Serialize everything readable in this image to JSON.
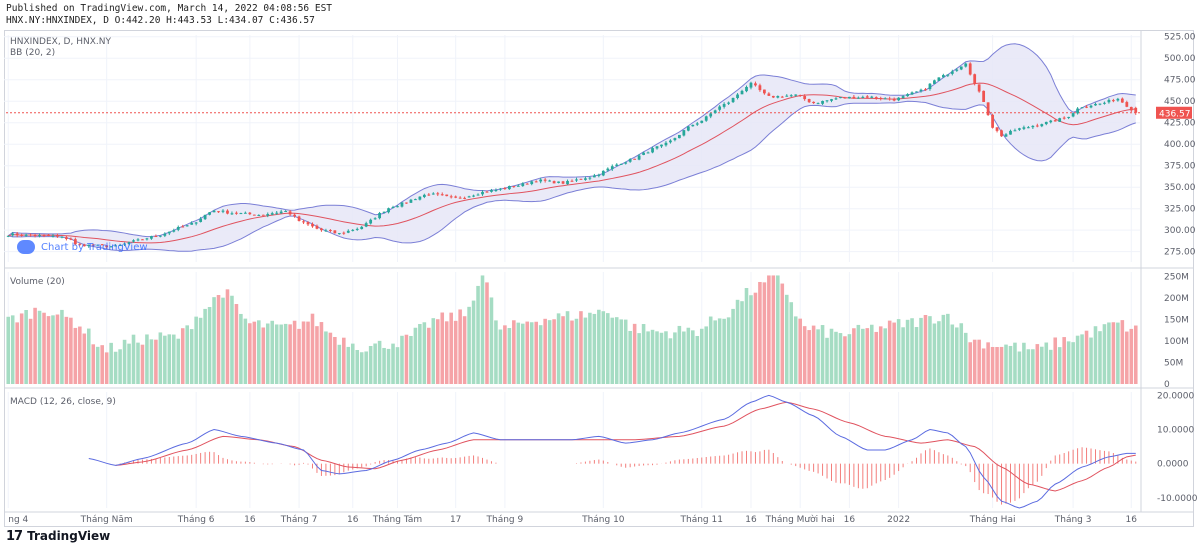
{
  "header": {
    "published": "Published on TradingView.com, March 14, 2022 04:08:56 EST",
    "ohlc": "HNX.NY:HNXINDEX, D O:442.20 H:443.53 L:434.07 C:436.57"
  },
  "footer": {
    "logo_mark": "17",
    "logo_text": "TradingView"
  },
  "watermark": {
    "text": "Chart by TradingView"
  },
  "colors": {
    "up": "#26a69a",
    "down": "#ef5350",
    "up_light": "#a5dcc3",
    "down_light": "#f5a3a7",
    "band": "#7b7fd6",
    "band_fill": "#e6e6f7",
    "basis": "#e0535f",
    "macd": "#5b6be0",
    "signal": "#e0535f",
    "price_line": "#ef5350"
  },
  "chart_data": [
    {
      "type": "candlestick",
      "title": "HNXINDEX, D, HNX.NY",
      "indicator_label": "BB (20, 2)",
      "ylim": [
        263,
        527
      ],
      "yticks": [
        "525.00",
        "500.00",
        "475.00",
        "450.00",
        "425.00",
        "400.00",
        "375.00",
        "350.00",
        "325.00",
        "300.00",
        "275.00"
      ],
      "last_price": "436.57",
      "ohlc": {
        "open": 442.2,
        "high": 443.53,
        "low": 434.07,
        "close": 436.57
      },
      "close_anchors": [
        [
          0,
          295
        ],
        [
          10,
          293
        ],
        [
          14,
          290
        ],
        [
          15,
          283
        ],
        [
          24,
          281
        ],
        [
          28,
          287
        ],
        [
          32,
          292
        ],
        [
          40,
          305
        ],
        [
          46,
          323
        ],
        [
          50,
          320
        ],
        [
          56,
          318
        ],
        [
          62,
          322
        ],
        [
          66,
          308
        ],
        [
          70,
          300
        ],
        [
          74,
          296
        ],
        [
          78,
          302
        ],
        [
          86,
          328
        ],
        [
          94,
          342
        ],
        [
          100,
          337
        ],
        [
          108,
          346
        ],
        [
          114,
          352
        ],
        [
          118,
          358
        ],
        [
          124,
          355
        ],
        [
          130,
          362
        ],
        [
          138,
          380
        ],
        [
          146,
          398
        ],
        [
          154,
          425
        ],
        [
          160,
          446
        ],
        [
          166,
          470
        ],
        [
          170,
          455
        ],
        [
          176,
          457
        ],
        [
          180,
          448
        ],
        [
          186,
          454
        ],
        [
          192,
          455
        ],
        [
          198,
          452
        ],
        [
          204,
          462
        ],
        [
          208,
          477
        ],
        [
          212,
          488
        ],
        [
          214,
          495
        ],
        [
          216,
          470
        ],
        [
          218,
          450
        ],
        [
          220,
          420
        ],
        [
          222,
          410
        ],
        [
          226,
          418
        ],
        [
          232,
          425
        ],
        [
          236,
          430
        ],
        [
          240,
          444
        ],
        [
          244,
          447
        ],
        [
          248,
          453
        ],
        [
          250,
          445
        ],
        [
          252,
          436.57
        ]
      ],
      "bollinger": {
        "period": 20,
        "stddev": 2,
        "shape_hint": "upper/lower bands bulge to about 512 / 378 around Feb 2022"
      }
    },
    {
      "type": "bar",
      "title": "Volume (20)",
      "ylim": [
        0,
        260
      ],
      "yticks": [
        "250M",
        "200M",
        "150M",
        "100M",
        "50M",
        "0"
      ],
      "unit": "M",
      "value_anchors": [
        [
          0,
          150
        ],
        [
          8,
          175
        ],
        [
          14,
          150
        ],
        [
          22,
          80
        ],
        [
          30,
          105
        ],
        [
          38,
          110
        ],
        [
          44,
          175
        ],
        [
          48,
          215
        ],
        [
          54,
          140
        ],
        [
          62,
          130
        ],
        [
          68,
          150
        ],
        [
          74,
          105
        ],
        [
          80,
          85
        ],
        [
          88,
          100
        ],
        [
          96,
          150
        ],
        [
          102,
          160
        ],
        [
          106,
          255
        ],
        [
          110,
          125
        ],
        [
          118,
          150
        ],
        [
          128,
          160
        ],
        [
          134,
          170
        ],
        [
          140,
          130
        ],
        [
          146,
          120
        ],
        [
          154,
          125
        ],
        [
          160,
          160
        ],
        [
          166,
          215
        ],
        [
          172,
          250
        ],
        [
          178,
          130
        ],
        [
          186,
          115
        ],
        [
          194,
          130
        ],
        [
          200,
          140
        ],
        [
          210,
          160
        ],
        [
          216,
          100
        ],
        [
          222,
          90
        ],
        [
          230,
          80
        ],
        [
          236,
          100
        ],
        [
          242,
          120
        ],
        [
          248,
          140
        ],
        [
          252,
          125
        ]
      ]
    },
    {
      "type": "line",
      "title": "MACD (12, 26, close, 9)",
      "ylim": [
        -13,
        21
      ],
      "yticks": [
        "20.0000",
        "10.0000",
        "0.0000",
        "-10.0000"
      ],
      "series": [
        {
          "name": "MACD",
          "anchors": [
            [
              18,
              1.5
            ],
            [
              24,
              -0.5
            ],
            [
              30,
              1.5
            ],
            [
              40,
              6
            ],
            [
              46,
              10
            ],
            [
              52,
              8
            ],
            [
              60,
              6
            ],
            [
              66,
              4
            ],
            [
              70,
              -2
            ],
            [
              74,
              -3
            ],
            [
              80,
              -2
            ],
            [
              86,
              1
            ],
            [
              92,
              4
            ],
            [
              98,
              6
            ],
            [
              104,
              9
            ],
            [
              110,
              7
            ],
            [
              118,
              7
            ],
            [
              126,
              7
            ],
            [
              132,
              8
            ],
            [
              138,
              6
            ],
            [
              144,
              7
            ],
            [
              150,
              9
            ],
            [
              160,
              13
            ],
            [
              166,
              18
            ],
            [
              170,
              20
            ],
            [
              174,
              18
            ],
            [
              180,
              14
            ],
            [
              186,
              8
            ],
            [
              192,
              4
            ],
            [
              196,
              4
            ],
            [
              202,
              7
            ],
            [
              206,
              10
            ],
            [
              210,
              9
            ],
            [
              214,
              5
            ],
            [
              218,
              -4
            ],
            [
              222,
              -11
            ],
            [
              226,
              -13
            ],
            [
              230,
              -11
            ],
            [
              234,
              -6
            ],
            [
              240,
              -1
            ],
            [
              246,
              2
            ],
            [
              250,
              3
            ],
            [
              252,
              3
            ]
          ]
        },
        {
          "name": "Signal",
          "anchors": [
            [
              24,
              -0.5
            ],
            [
              30,
              0.5
            ],
            [
              40,
              4
            ],
            [
              48,
              8
            ],
            [
              56,
              7
            ],
            [
              64,
              5
            ],
            [
              70,
              1
            ],
            [
              76,
              -1
            ],
            [
              82,
              -1.5
            ],
            [
              88,
              1
            ],
            [
              96,
              4
            ],
            [
              104,
              7
            ],
            [
              112,
              7
            ],
            [
              120,
              7
            ],
            [
              130,
              7
            ],
            [
              140,
              7
            ],
            [
              150,
              8
            ],
            [
              160,
              11
            ],
            [
              168,
              16
            ],
            [
              174,
              18
            ],
            [
              180,
              16
            ],
            [
              188,
              12
            ],
            [
              196,
              8
            ],
            [
              204,
              6
            ],
            [
              210,
              7
            ],
            [
              216,
              5
            ],
            [
              222,
              -1
            ],
            [
              228,
              -6
            ],
            [
              234,
              -8
            ],
            [
              240,
              -5
            ],
            [
              246,
              -1
            ],
            [
              250,
              2
            ],
            [
              252,
              2.5
            ]
          ]
        }
      ]
    }
  ],
  "x_axis": {
    "labels": [
      {
        "text": "ng 4",
        "i": 0
      },
      {
        "text": "Tháng Năm",
        "i": 22
      },
      {
        "text": "Tháng 6",
        "i": 42
      },
      {
        "text": "16",
        "i": 54
      },
      {
        "text": "Tháng 7",
        "i": 65
      },
      {
        "text": "16",
        "i": 77
      },
      {
        "text": "Tháng Tám",
        "i": 87
      },
      {
        "text": "17",
        "i": 100
      },
      {
        "text": "Tháng 9",
        "i": 111
      },
      {
        "text": "Tháng 10",
        "i": 133
      },
      {
        "text": "Tháng 11",
        "i": 155
      },
      {
        "text": "16",
        "i": 166
      },
      {
        "text": "Tháng Mười hai",
        "i": 177
      },
      {
        "text": "16",
        "i": 188
      },
      {
        "text": "2022",
        "i": 199
      },
      {
        "text": "Tháng Hai",
        "i": 220
      },
      {
        "text": "Tháng 3",
        "i": 238
      },
      {
        "text": "16",
        "i": 251
      }
    ]
  }
}
